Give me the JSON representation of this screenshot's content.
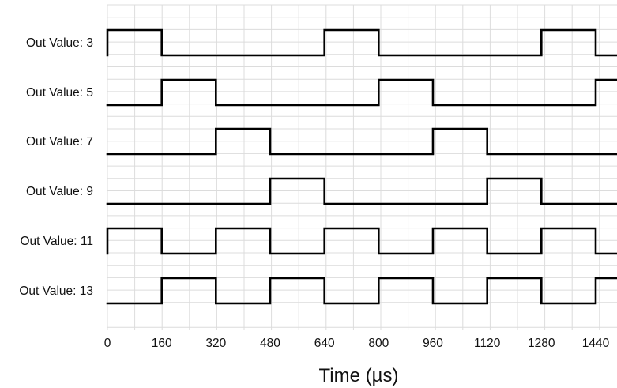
{
  "chart_data": {
    "type": "line",
    "title": "",
    "xlabel": "Time (µs)",
    "ylabel": "",
    "xlim": [
      0,
      1500
    ],
    "x_ticks": [
      0,
      160,
      320,
      480,
      640,
      800,
      960,
      1120,
      1280,
      1440
    ],
    "grid": true,
    "series": [
      {
        "name": "Out Value: 3",
        "x": [
          0,
          160,
          640,
          800,
          1280,
          1440,
          1500
        ],
        "y": [
          1,
          0,
          1,
          0,
          1,
          0,
          0
        ]
      },
      {
        "name": "Out Value: 5",
        "x": [
          0,
          160,
          320,
          800,
          960,
          1440,
          1500
        ],
        "y": [
          0,
          1,
          0,
          1,
          0,
          1,
          1
        ]
      },
      {
        "name": "Out Value: 7",
        "x": [
          0,
          320,
          480,
          960,
          1120,
          1500
        ],
        "y": [
          0,
          1,
          0,
          1,
          0,
          0
        ]
      },
      {
        "name": "Out Value: 9",
        "x": [
          0,
          480,
          640,
          1120,
          1280,
          1500
        ],
        "y": [
          0,
          1,
          0,
          1,
          0,
          0
        ]
      },
      {
        "name": "Out Value: 11",
        "x": [
          0,
          160,
          320,
          480,
          640,
          800,
          960,
          1120,
          1280,
          1440,
          1500
        ],
        "y": [
          1,
          0,
          1,
          0,
          1,
          0,
          1,
          0,
          1,
          0,
          0
        ]
      },
      {
        "name": "Out Value: 13",
        "x": [
          0,
          160,
          320,
          480,
          640,
          800,
          960,
          1120,
          1280,
          1440,
          1500
        ],
        "y": [
          0,
          1,
          0,
          1,
          0,
          1,
          0,
          1,
          0,
          1,
          1
        ]
      }
    ]
  }
}
